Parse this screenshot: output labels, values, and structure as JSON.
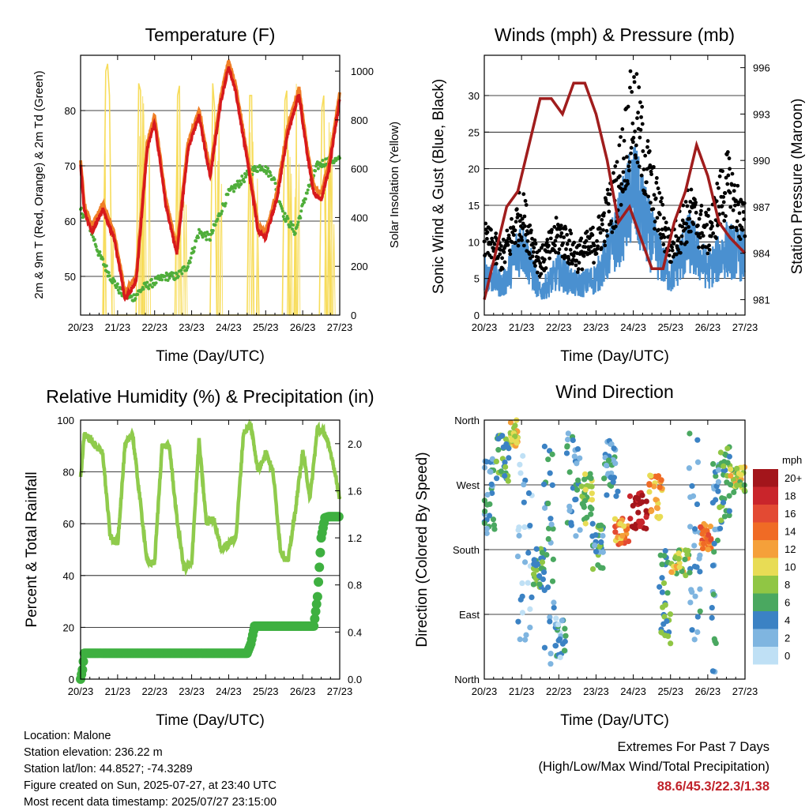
{
  "time_ticks": [
    "20/23",
    "21/23",
    "22/23",
    "23/23",
    "24/23",
    "25/23",
    "26/23",
    "27/23"
  ],
  "colors": {
    "temp2m": "#d7191c",
    "temp9m": "#f07f27",
    "dewpoint": "#4fae3a",
    "solar": "#f7dc5a",
    "wind": "#4a90d0",
    "gust": "#000000",
    "pressure": "#a01d1d",
    "rh": "#8fcb4c",
    "precip": "#3eb040"
  },
  "footer": {
    "location": "Location: Malone",
    "elevation": "Station elevation: 236.22 m",
    "latlon": "Station lat/lon: 44.8527; -74.3289",
    "created": "Figure created on Sun, 2025-07-27, at 23:40 UTC",
    "recent": "Most recent data timestamp: 2025/07/27 23:15:00"
  },
  "extremes": {
    "line1": "Extremes For Past 7 Days",
    "line2": "(High/Low/Max Wind/Total Precipitation)",
    "values": "88.6/45.3/22.3/1.38"
  },
  "chart_data": [
    {
      "type": "line",
      "title": "Temperature (F)",
      "xlabel": "Time (Day/UTC)",
      "ylabel": "2m & 9m T (Red, Orange) & 2m Td (Green)",
      "y2label": "Solar Insolation (Yellow)",
      "x_ticks": [
        "20/23",
        "21/23",
        "22/23",
        "23/23",
        "24/23",
        "25/23",
        "26/23",
        "27/23"
      ],
      "ylim": [
        43,
        90
      ],
      "yticks": [
        50,
        60,
        70,
        80
      ],
      "y2lim": [
        0,
        1065
      ],
      "y2ticks": [
        0,
        200,
        400,
        600,
        800,
        1000
      ],
      "series": [
        {
          "name": "2m T",
          "x": [
            0,
            0.1,
            0.3,
            0.6,
            0.9,
            1.2,
            1.5,
            1.8,
            2.0,
            2.3,
            2.6,
            2.9,
            3.2,
            3.5,
            3.8,
            4.0,
            4.2,
            4.5,
            4.8,
            5.0,
            5.3,
            5.6,
            5.9,
            6.1,
            6.3,
            6.5,
            6.7,
            7.0
          ],
          "y": [
            70,
            62,
            58,
            62,
            57,
            46,
            49,
            73,
            78,
            63,
            54,
            73,
            79,
            68,
            82,
            88,
            83,
            71,
            58,
            57,
            64,
            76,
            83,
            73,
            65,
            64,
            69,
            82
          ]
        },
        {
          "name": "Td",
          "x": [
            0,
            0.2,
            0.5,
            0.8,
            1.1,
            1.4,
            1.7,
            2.0,
            2.3,
            2.6,
            2.9,
            3.2,
            3.5,
            3.8,
            4.0,
            4.3,
            4.6,
            4.9,
            5.2,
            5.5,
            5.8,
            6.1,
            6.4,
            6.7,
            7.0
          ],
          "y": [
            62,
            60,
            54,
            50,
            47,
            46,
            48,
            49,
            50,
            50,
            52,
            58,
            57,
            62,
            65,
            67,
            69,
            70,
            68,
            61,
            58,
            65,
            70,
            71,
            71
          ]
        },
        {
          "name": "Solar",
          "x": [
            0.6,
            0.68,
            0.73,
            0.78,
            0.85,
            1.5,
            1.57,
            1.62,
            1.68,
            2.55,
            2.62,
            2.67,
            2.72,
            3.5,
            3.57,
            3.62,
            3.68,
            4.5,
            4.57,
            4.62,
            4.68,
            5.45,
            5.52,
            5.57,
            5.63,
            6.45,
            6.52,
            6.57,
            6.63
          ],
          "y": [
            0,
            1000,
            1030,
            900,
            0,
            0,
            950,
            920,
            0,
            0,
            900,
            940,
            0,
            0,
            950,
            850,
            0,
            0,
            900,
            900,
            0,
            0,
            880,
            920,
            0,
            0,
            850,
            900,
            0
          ]
        }
      ]
    },
    {
      "type": "line",
      "title": "Winds (mph) & Pressure (mb)",
      "xlabel": "Time (Day/UTC)",
      "ylabel": "Sonic Wind & Gust (Blue, Black)",
      "y2label": "Station Pressure (Maroon)",
      "x_ticks": [
        "20/23",
        "21/23",
        "22/23",
        "23/23",
        "24/23",
        "25/23",
        "26/23",
        "27/23"
      ],
      "ylim": [
        0,
        35.5
      ],
      "yticks": [
        0,
        5,
        10,
        15,
        20,
        25,
        30
      ],
      "y2lim": [
        980,
        996.8
      ],
      "y2ticks": [
        981,
        984,
        987,
        990,
        993,
        996
      ],
      "series": [
        {
          "name": "Pressure",
          "x": [
            0,
            0.3,
            0.6,
            0.9,
            1.2,
            1.5,
            1.8,
            2.1,
            2.4,
            2.7,
            3.0,
            3.3,
            3.6,
            3.9,
            4.2,
            4.5,
            4.8,
            5.1,
            5.4,
            5.7,
            6.0,
            6.3,
            6.6,
            7.0
          ],
          "y": [
            981,
            984,
            987,
            988,
            991,
            994,
            994,
            993,
            995,
            995,
            993,
            990,
            986,
            987,
            985,
            983,
            983,
            986,
            988,
            991,
            989,
            986,
            985,
            984
          ]
        },
        {
          "name": "Wind",
          "x": [
            0,
            0.5,
            1.0,
            1.5,
            2.0,
            2.5,
            3.0,
            3.5,
            4.0,
            4.5,
            5.0,
            5.5,
            6.0,
            6.5,
            7.0
          ],
          "y": [
            6,
            4,
            10,
            3,
            6,
            4,
            5,
            10,
            17,
            10,
            5,
            10,
            6,
            9,
            8
          ]
        },
        {
          "name": "Gust",
          "x": [
            0,
            0.5,
            1.0,
            1.5,
            2.0,
            2.5,
            3.0,
            3.5,
            4.0,
            4.5,
            5.0,
            5.5,
            6.0,
            6.5,
            7.0
          ],
          "y": [
            10,
            8,
            14,
            7,
            11,
            8,
            10,
            16,
            28,
            17,
            9,
            14,
            11,
            18,
            12
          ]
        }
      ]
    },
    {
      "type": "line",
      "title": "Relative Humidity (%) & Precipitation (in)",
      "xlabel": "Time (Day/UTC)",
      "ylabel": "Percent & Total Rainfall",
      "x_ticks": [
        "20/23",
        "21/23",
        "22/23",
        "23/23",
        "24/23",
        "25/23",
        "26/23",
        "27/23"
      ],
      "ylim": [
        0,
        100
      ],
      "yticks": [
        0,
        20,
        40,
        60,
        80,
        100
      ],
      "y2lim": [
        0,
        2.2
      ],
      "y2ticks": [
        "0.0",
        "0.4",
        "0.8",
        "1.2",
        "1.6",
        "2.0"
      ],
      "series": [
        {
          "name": "RH",
          "x": [
            0,
            0.1,
            0.3,
            0.6,
            0.8,
            1.0,
            1.2,
            1.4,
            1.6,
            1.8,
            2.0,
            2.2,
            2.4,
            2.6,
            2.8,
            3.0,
            3.2,
            3.4,
            3.6,
            3.8,
            4.0,
            4.2,
            4.4,
            4.6,
            4.8,
            5.0,
            5.2,
            5.4,
            5.6,
            5.8,
            6.0,
            6.2,
            6.4,
            6.6,
            6.8,
            7.0
          ],
          "y": [
            77,
            95,
            92,
            87,
            55,
            52,
            90,
            95,
            70,
            45,
            45,
            90,
            90,
            62,
            42,
            45,
            92,
            60,
            62,
            50,
            52,
            55,
            95,
            98,
            80,
            88,
            80,
            50,
            45,
            65,
            88,
            70,
            97,
            95,
            85,
            70
          ]
        },
        {
          "name": "Precip",
          "x": [
            0,
            0.05,
            0.1,
            4.5,
            4.6,
            4.7,
            6.3,
            6.4,
            6.5,
            6.6,
            6.7,
            7.0
          ],
          "y": [
            0.0,
            0.08,
            0.22,
            0.22,
            0.3,
            0.45,
            0.45,
            0.7,
            1.2,
            1.37,
            1.38,
            1.38
          ]
        }
      ]
    },
    {
      "type": "scatter",
      "title": "Wind Direction",
      "xlabel": "Time (Day/UTC)",
      "ylabel": "Direction (Colored By Speed)",
      "x_ticks": [
        "20/23",
        "21/23",
        "22/23",
        "23/23",
        "24/23",
        "25/23",
        "26/23",
        "27/23"
      ],
      "y_tick_labels": [
        "North",
        "East",
        "South",
        "West",
        "North"
      ],
      "legend_title": "mph",
      "legend_labels": [
        "20+",
        "18",
        "16",
        "14",
        "12",
        "10",
        "8",
        "6",
        "4",
        "2",
        "0"
      ],
      "legend_colors": [
        "#a3151b",
        "#c9252b",
        "#e34a33",
        "#f06b25",
        "#f5a03a",
        "#e8dc55",
        "#90c644",
        "#4aa860",
        "#3b82c4",
        "#7fb5e0",
        "#bfe0f5"
      ]
    }
  ]
}
